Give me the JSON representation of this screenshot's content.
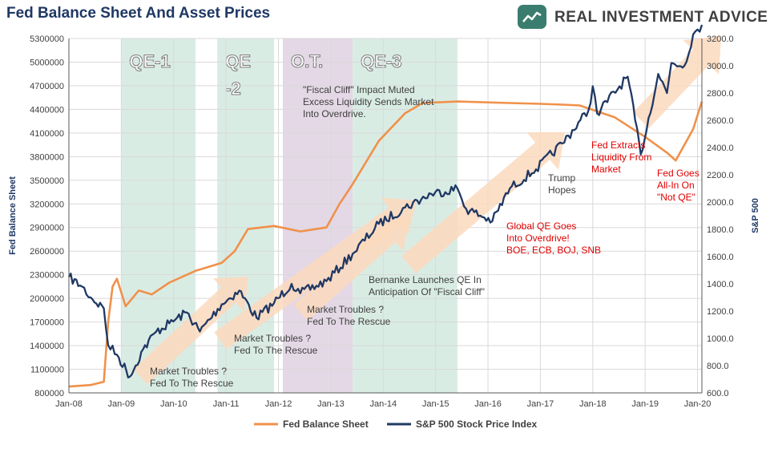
{
  "logo": {
    "text": "REAL INVESTMENT ADVICE",
    "badge_icon": "chart-badge-icon",
    "badge_color": "#3a7d6e"
  },
  "colors": {
    "fed": "#f0914a",
    "spx": "#1f3864",
    "band_green": "#d9ece4",
    "band_purple": "#e4d7e6",
    "arrow": "#fbd9bd",
    "ann_dark": "#404040",
    "ann_red": "#e00000"
  },
  "chart_data": {
    "type": "line",
    "title": "Fed Balance Sheet And Asset Prices",
    "x_range": [
      "2008-01",
      "2020-02"
    ],
    "x_ticks": [
      "Jan-08",
      "Jan-09",
      "Jan-10",
      "Jan-11",
      "Jan-12",
      "Jan-13",
      "Jan-14",
      "Jan-15",
      "Jan-16",
      "Jan-17",
      "Jan-18",
      "Jan-19",
      "Jan-20"
    ],
    "y_left": {
      "label": "Fed Balance Sheet",
      "range": [
        800000,
        5300000
      ],
      "ticks": [
        "800000",
        "1100000",
        "1400000",
        "1700000",
        "2000000",
        "2300000",
        "2600000",
        "2900000",
        "3200000",
        "3500000",
        "3800000",
        "4100000",
        "4400000",
        "4700000",
        "5000000",
        "5300000"
      ]
    },
    "y_right": {
      "label": "S&P 500",
      "range": [
        600,
        3200
      ],
      "ticks": [
        "600.0",
        "800.0",
        "1000.0",
        "1200.0",
        "1400.0",
        "1600.0",
        "1800.0",
        "2000.0",
        "2200.0",
        "2400.0",
        "2600.0",
        "2800.0",
        "3000.0",
        "3200.0"
      ]
    },
    "legend": {
      "placement": "bottom",
      "entries": [
        "Fed Balance Sheet",
        "S&P 500 Stock Price Index"
      ]
    },
    "bands": [
      {
        "label": "QE-1",
        "start": "2009-01",
        "end": "2010-06",
        "kind": "qe"
      },
      {
        "label": "QE",
        "label2": "-2",
        "start": "2010-11",
        "end": "2011-12",
        "kind": "qe"
      },
      {
        "label": "O.T.",
        "start": "2012-02",
        "end": "2013-06",
        "kind": "ot"
      },
      {
        "label": "QE-3",
        "start": "2013-06",
        "end": "2015-06",
        "kind": "qe"
      }
    ],
    "series": [
      {
        "name": "Fed Balance Sheet",
        "axis": "left",
        "points": [
          [
            "2008-01",
            880000
          ],
          [
            "2008-06",
            900000
          ],
          [
            "2008-09",
            940000
          ],
          [
            "2008-10",
            1700000
          ],
          [
            "2008-11",
            2150000
          ],
          [
            "2008-12",
            2250000
          ],
          [
            "2009-02",
            1900000
          ],
          [
            "2009-05",
            2100000
          ],
          [
            "2009-08",
            2050000
          ],
          [
            "2009-12",
            2200000
          ],
          [
            "2010-06",
            2350000
          ],
          [
            "2010-12",
            2450000
          ],
          [
            "2011-03",
            2600000
          ],
          [
            "2011-06",
            2880000
          ],
          [
            "2011-12",
            2920000
          ],
          [
            "2012-06",
            2850000
          ],
          [
            "2012-12",
            2900000
          ],
          [
            "2013-03",
            3200000
          ],
          [
            "2013-06",
            3450000
          ],
          [
            "2013-12",
            4000000
          ],
          [
            "2014-06",
            4350000
          ],
          [
            "2014-10",
            4480000
          ],
          [
            "2015-06",
            4500000
          ],
          [
            "2016-06",
            4480000
          ],
          [
            "2017-01",
            4470000
          ],
          [
            "2017-06",
            4460000
          ],
          [
            "2017-10",
            4450000
          ],
          [
            "2018-06",
            4300000
          ],
          [
            "2019-01",
            4050000
          ],
          [
            "2019-06",
            3850000
          ],
          [
            "2019-08",
            3750000
          ],
          [
            "2019-10",
            3950000
          ],
          [
            "2019-12",
            4150000
          ],
          [
            "2020-02",
            4500000
          ]
        ]
      },
      {
        "name": "S&P 500 Stock Price Index",
        "axis": "right",
        "points": [
          [
            "2008-01",
            1450
          ],
          [
            "2008-04",
            1380
          ],
          [
            "2008-06",
            1300
          ],
          [
            "2008-09",
            1220
          ],
          [
            "2008-10",
            950
          ],
          [
            "2008-12",
            880
          ],
          [
            "2009-03",
            720
          ],
          [
            "2009-06",
            920
          ],
          [
            "2009-09",
            1050
          ],
          [
            "2009-12",
            1110
          ],
          [
            "2010-04",
            1190
          ],
          [
            "2010-07",
            1050
          ],
          [
            "2010-12",
            1250
          ],
          [
            "2011-04",
            1350
          ],
          [
            "2011-08",
            1150
          ],
          [
            "2011-12",
            1260
          ],
          [
            "2012-04",
            1400
          ],
          [
            "2012-06",
            1330
          ],
          [
            "2012-12",
            1420
          ],
          [
            "2013-06",
            1620
          ],
          [
            "2013-12",
            1840
          ],
          [
            "2014-06",
            1960
          ],
          [
            "2014-12",
            2060
          ],
          [
            "2015-06",
            2100
          ],
          [
            "2015-08",
            1950
          ],
          [
            "2016-02",
            1860
          ],
          [
            "2016-06",
            2100
          ],
          [
            "2016-12",
            2240
          ],
          [
            "2017-06",
            2430
          ],
          [
            "2017-12",
            2670
          ],
          [
            "2018-01",
            2850
          ],
          [
            "2018-02",
            2650
          ],
          [
            "2018-09",
            2920
          ],
          [
            "2018-12",
            2350
          ],
          [
            "2019-04",
            2940
          ],
          [
            "2019-06",
            2800
          ],
          [
            "2019-07",
            3020
          ],
          [
            "2019-10",
            3000
          ],
          [
            "2019-12",
            3230
          ],
          [
            "2020-02",
            3300
          ]
        ]
      }
    ],
    "annotations": [
      {
        "lines": [
          "Market Troubles ?",
          "Fed To The Rescue"
        ],
        "color": "dark"
      },
      {
        "lines": [
          "Market Troubles ?",
          "Fed To The Rescue"
        ],
        "color": "dark"
      },
      {
        "lines": [
          "Market Troubles ?",
          "Fed To The Rescue"
        ],
        "color": "dark"
      },
      {
        "lines": [
          "Bernanke Launches QE In",
          "Anticipation Of \"Fiscal Cliff\""
        ],
        "color": "dark"
      },
      {
        "lines": [
          "\"Fiscal Cliff\" Impact Muted",
          "Excess Liquidity Sends Market",
          "Into Overdrive."
        ],
        "color": "dark"
      },
      {
        "lines": [
          "Trump",
          "Hopes"
        ],
        "color": "dark"
      },
      {
        "lines": [
          "Global QE Goes",
          "Into Overdrive!",
          "BOE, ECB, BOJ, SNB"
        ],
        "color": "red"
      },
      {
        "lines": [
          "Fed Extracts",
          "Liquidity From",
          "Market"
        ],
        "color": "red"
      },
      {
        "lines": [
          "Fed Goes",
          "All-In On",
          "\"Not QE\""
        ],
        "color": "red"
      }
    ]
  }
}
